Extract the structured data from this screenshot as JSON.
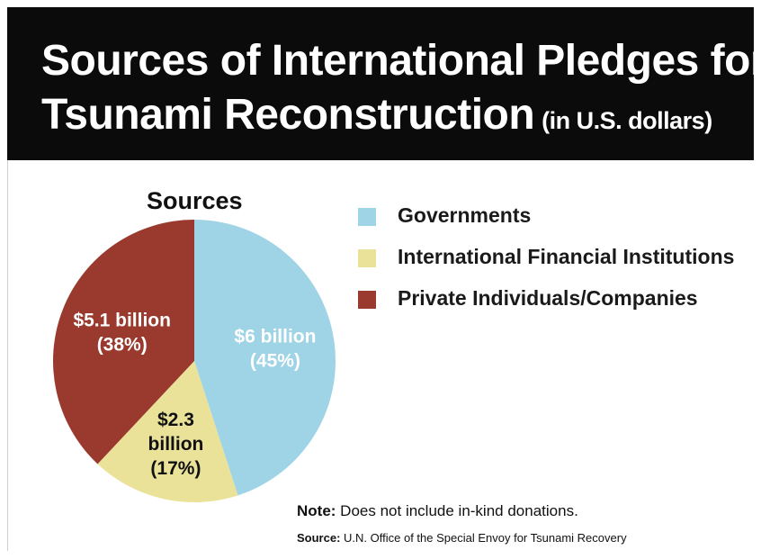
{
  "header": {
    "title_line1": "Sources of International Pledges for",
    "title_line2": "Tsunami Reconstruction",
    "title_unit": "(in U.S. dollars)"
  },
  "chart_data": {
    "type": "pie",
    "title": "Sources",
    "slices": [
      {
        "label": "Governments",
        "value": 45,
        "amount_label": "$6 billion",
        "pct_label": "(45%)",
        "color": "#9fd3e6",
        "text_color": "#ffffff"
      },
      {
        "label": "International Financial Institutions",
        "value": 17,
        "amount_label": "$2.3 billion",
        "pct_label": "(17%)",
        "color": "#ebe29a",
        "text_color": "#111111"
      },
      {
        "label": "Private Individuals/Companies",
        "value": 38,
        "amount_label": "$5.1 billion",
        "pct_label": "(38%)",
        "color": "#9a3a2e",
        "text_color": "#ffffff"
      }
    ],
    "legend_position": "right"
  },
  "legend": {
    "items": [
      {
        "label": "Governments",
        "color": "#9fd3e6"
      },
      {
        "label": "International Financial Institutions",
        "color": "#ebe29a"
      },
      {
        "label": "Private Individuals/Companies",
        "color": "#9a3a2e"
      }
    ]
  },
  "footer": {
    "note_label": "Note:",
    "note_text": " Does not include in-kind donations.",
    "source_label": "Source:",
    "source_text": " U.N. Office of the Special Envoy for Tsunami Recovery"
  }
}
